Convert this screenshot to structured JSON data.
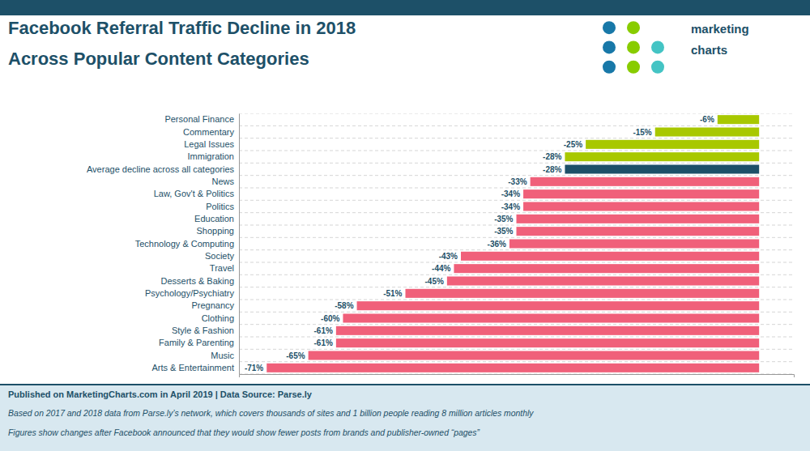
{
  "chart_data": {
    "type": "bar",
    "orientation": "horizontal",
    "title": "Facebook Referral Traffic Decline in 2018",
    "subtitle": "Across Popular Content Categories",
    "categories": [
      "Personal Finance",
      "Commentary",
      "Legal Issues",
      "Immigration",
      "Average decline across all categories",
      "News",
      "Law, Gov't & Politics",
      "Politics",
      "Education",
      "Shopping",
      "Technology & Computing",
      "Society",
      "Travel",
      "Desserts & Baking",
      "Psychology/Psychiatry",
      "Pregnancy",
      "Clothing",
      "Style & Fashion",
      "Family & Parenting",
      "Music",
      "Arts & Entertainment"
    ],
    "values": [
      -6,
      -15,
      -25,
      -28,
      -28,
      -33,
      -34,
      -34,
      -35,
      -35,
      -36,
      -43,
      -44,
      -45,
      -51,
      -58,
      -60,
      -61,
      -61,
      -65,
      -71
    ],
    "value_labels": [
      "-6%",
      "-15%",
      "-25%",
      "-28%",
      "-28%",
      "-33%",
      "-34%",
      "-34%",
      "-35%",
      "-35%",
      "-36%",
      "-43%",
      "-44%",
      "-45%",
      "-51%",
      "-58%",
      "-60%",
      "-61%",
      "-61%",
      "-65%",
      "-71%"
    ],
    "colors": [
      "#a8c800",
      "#a8c800",
      "#a8c800",
      "#a8c800",
      "#1d5068",
      "#f0607a",
      "#f0607a",
      "#f0607a",
      "#f0607a",
      "#f0607a",
      "#f0607a",
      "#f0607a",
      "#f0607a",
      "#f0607a",
      "#f0607a",
      "#f0607a",
      "#f0607a",
      "#f0607a",
      "#f0607a",
      "#f0607a",
      "#f0607a"
    ],
    "xlim": [
      -75,
      5
    ],
    "data_labels": true,
    "tick_labels": "y",
    "grid": true,
    "annotations": [
      "Published on MarketingCharts.com in April 2019 | Data Source: Parse.ly",
      "Based on 2017 and 2018 data from Parse.ly’s network, which covers thousands of sites and 1 billion people reading 8 million articles monthly",
      "Figures show changes after Facebook announced that they would show fewer posts from brands and publisher-owned “pages”",
      "marketing",
      "charts"
    ]
  }
}
